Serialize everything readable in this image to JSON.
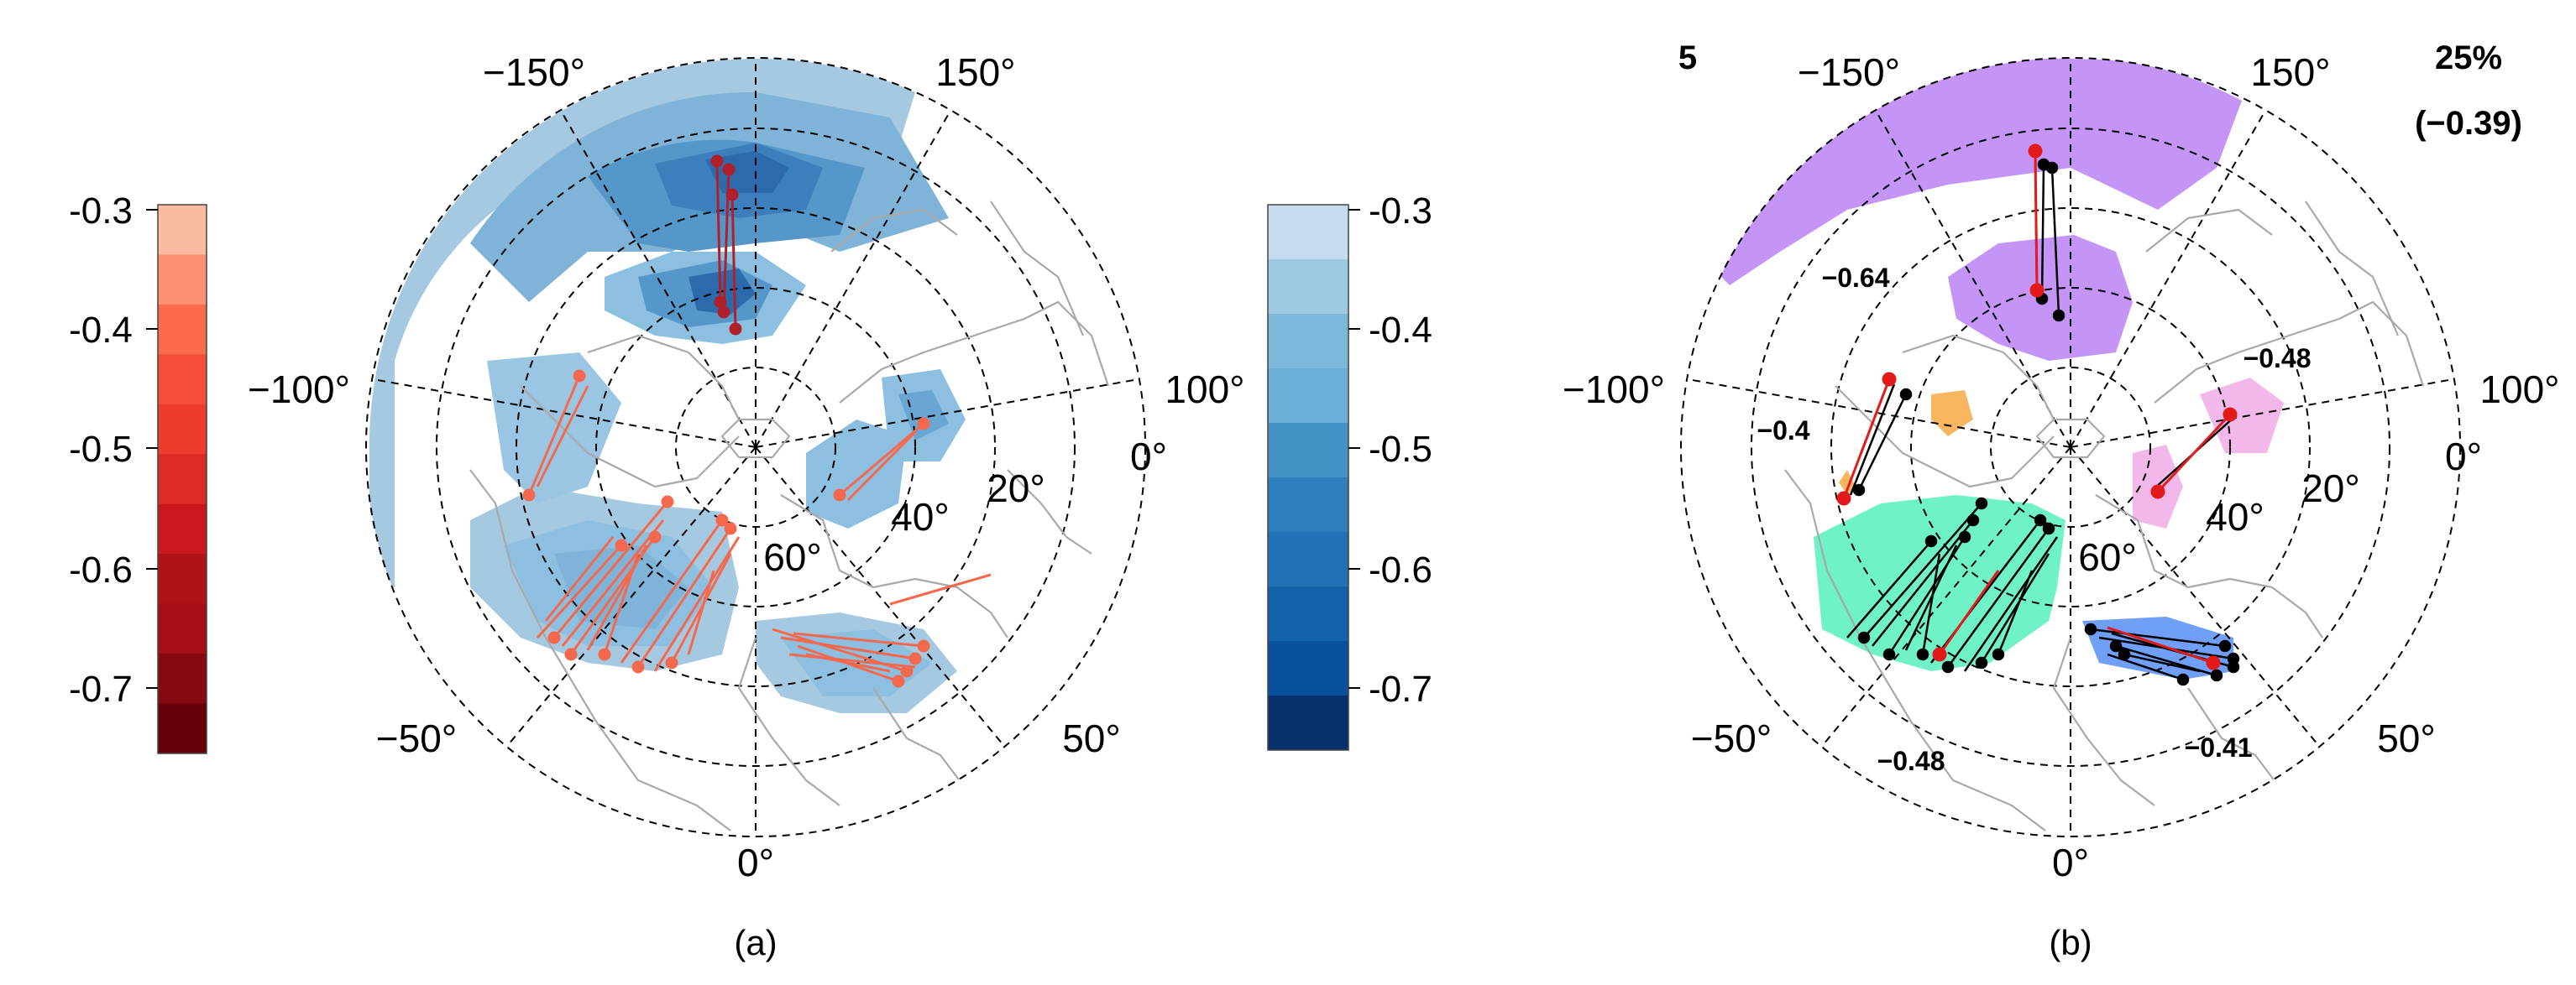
{
  "panel_a": {
    "caption": "(a)",
    "longitude_labels": [
      "−150°",
      "150°",
      "−100°",
      "100°",
      "0°",
      "−50°",
      "50°",
      "0°"
    ],
    "latitude_labels": [
      "20°",
      "40°",
      "60°"
    ],
    "colorbar_red": {
      "ticks": [
        "-0.3",
        "-0.4",
        "-0.5",
        "-0.6",
        "-0.7"
      ],
      "colors": [
        "#fcbba1",
        "#fc9272",
        "#fb6a4a",
        "#f44d38",
        "#ef3b2c",
        "#dd2a25",
        "#cb181d",
        "#b11218",
        "#a50f15",
        "#860811",
        "#67000d"
      ]
    },
    "colorbar_blue": {
      "ticks": [
        "-0.3",
        "-0.4",
        "-0.5",
        "-0.6",
        "-0.7"
      ],
      "colors": [
        "#c6dbef",
        "#9ecae1",
        "#7db8da",
        "#6baed6",
        "#4292c6",
        "#2f7ebc",
        "#2171b5",
        "#1361a9",
        "#08519c",
        "#08306b"
      ]
    }
  },
  "panel_b": {
    "caption": "(b)",
    "cluster_count": "5",
    "percent": "25%",
    "mean_corr": "(−0.39)",
    "longitude_labels": [
      "−150°",
      "150°",
      "−100°",
      "100°",
      "0°",
      "−50°",
      "50°",
      "0°"
    ],
    "latitude_labels": [
      "20°",
      "40°",
      "60°"
    ],
    "cluster_labels": [
      "−0.64",
      "−0.48",
      "−0.4",
      "−0.48",
      "−0.41"
    ],
    "cluster_colors": {
      "purple": "#c495f7",
      "pink": "#f2b8ea",
      "orange": "#f7b65f",
      "teal": "#6ff2c7",
      "blue": "#6f9ff7"
    }
  }
}
